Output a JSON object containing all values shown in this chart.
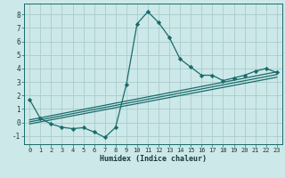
{
  "xlabel": "Humidex (Indice chaleur)",
  "bg_color": "#cce8e8",
  "grid_color": "#aacccc",
  "line_color": "#1a6b6b",
  "xlim": [
    -0.5,
    23.5
  ],
  "ylim": [
    -1.6,
    8.8
  ],
  "yticks": [
    -1,
    0,
    1,
    2,
    3,
    4,
    5,
    6,
    7,
    8
  ],
  "xticks": [
    0,
    1,
    2,
    3,
    4,
    5,
    6,
    7,
    8,
    9,
    10,
    11,
    12,
    13,
    14,
    15,
    16,
    17,
    18,
    19,
    20,
    21,
    22,
    23
  ],
  "main_x": [
    0,
    1,
    2,
    3,
    4,
    5,
    6,
    7,
    8,
    9,
    10,
    11,
    12,
    13,
    14,
    15,
    16,
    17,
    18,
    19,
    20,
    21,
    22,
    23
  ],
  "main_y": [
    1.7,
    0.3,
    -0.1,
    -0.35,
    -0.45,
    -0.38,
    -0.7,
    -1.1,
    -0.35,
    2.8,
    7.3,
    8.2,
    7.4,
    6.3,
    4.7,
    4.1,
    3.5,
    3.5,
    3.1,
    3.3,
    3.5,
    3.8,
    4.0,
    3.7
  ],
  "line1_x": [
    0,
    23
  ],
  "line1_y": [
    0.05,
    3.55
  ],
  "line2_x": [
    0,
    23
  ],
  "line2_y": [
    -0.1,
    3.35
  ],
  "line3_x": [
    0,
    23
  ],
  "line3_y": [
    0.2,
    3.75
  ]
}
